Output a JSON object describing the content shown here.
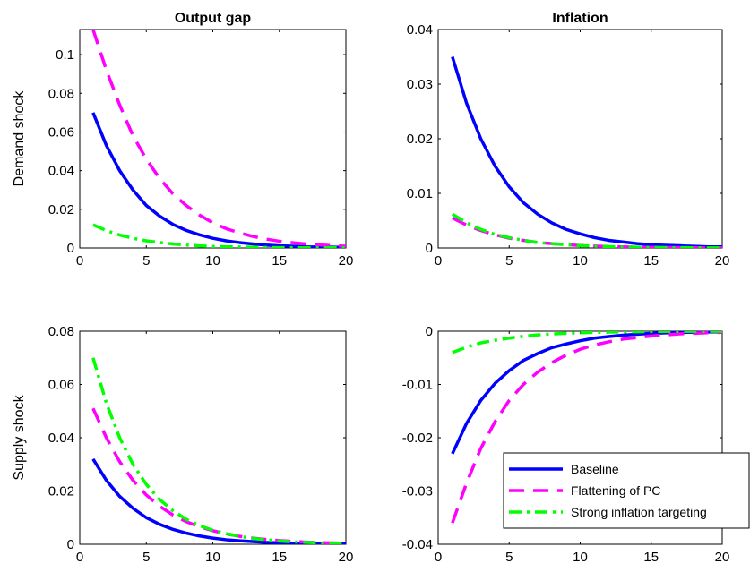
{
  "chart_data": [
    {
      "type": "line",
      "title": "Output gap",
      "ylabel": "Demand shock",
      "xlim": [
        0,
        20
      ],
      "ylim": [
        0,
        0.113
      ],
      "xticks": [
        0,
        5,
        10,
        15,
        20
      ],
      "yticks": [
        0,
        0.02,
        0.04,
        0.06,
        0.08,
        0.1
      ],
      "yticklabels": [
        "0",
        "0.02",
        "0.04",
        "0.06",
        "0.08",
        "0.1"
      ],
      "x": [
        1,
        2,
        3,
        4,
        5,
        6,
        7,
        8,
        9,
        10,
        11,
        12,
        13,
        14,
        15,
        16,
        17,
        18,
        19,
        20
      ],
      "series": [
        {
          "name": "Baseline",
          "values": [
            0.07,
            0.053,
            0.04,
            0.03,
            0.022,
            0.0165,
            0.0122,
            0.0091,
            0.0068,
            0.005,
            0.0037,
            0.0028,
            0.0021,
            0.0015,
            0.0011,
            0.0009,
            0.0006,
            0.0005,
            0.0004,
            0.0003
          ]
        },
        {
          "name": "Flattening of PC",
          "values": [
            0.113,
            0.092,
            0.074,
            0.058,
            0.046,
            0.036,
            0.028,
            0.022,
            0.017,
            0.013,
            0.01,
            0.0078,
            0.006,
            0.0046,
            0.0035,
            0.0027,
            0.0021,
            0.0016,
            0.0012,
            0.0009
          ]
        },
        {
          "name": "Strong inflation targeting",
          "values": [
            0.012,
            0.009,
            0.0067,
            0.005,
            0.0037,
            0.0028,
            0.0021,
            0.0015,
            0.0011,
            0.0008,
            0.0006,
            0.0005,
            0.0004,
            0.0003,
            0.0002,
            0.0002,
            0.0001,
            0.0001,
            0.0001,
            0.0001
          ]
        }
      ]
    },
    {
      "type": "line",
      "title": "Inflation",
      "ylabel": "",
      "xlim": [
        0,
        20
      ],
      "ylim": [
        0,
        0.04
      ],
      "xticks": [
        0,
        5,
        10,
        15,
        20
      ],
      "yticks": [
        0,
        0.01,
        0.02,
        0.03,
        0.04
      ],
      "yticklabels": [
        "0",
        "0.01",
        "0.02",
        "0.03",
        "0.04"
      ],
      "x": [
        1,
        2,
        3,
        4,
        5,
        6,
        7,
        8,
        9,
        10,
        11,
        12,
        13,
        14,
        15,
        16,
        17,
        18,
        19,
        20
      ],
      "series": [
        {
          "name": "Baseline",
          "values": [
            0.035,
            0.0265,
            0.02,
            0.015,
            0.0112,
            0.0083,
            0.0062,
            0.0046,
            0.0034,
            0.0026,
            0.0019,
            0.0014,
            0.0011,
            0.0008,
            0.0006,
            0.0005,
            0.0004,
            0.0003,
            0.0002,
            0.0002
          ]
        },
        {
          "name": "Flattening of PC",
          "values": [
            0.0055,
            0.0042,
            0.0032,
            0.0024,
            0.0018,
            0.0014,
            0.001,
            0.0008,
            0.0006,
            0.00045,
            0.00034,
            0.00026,
            0.0002,
            0.00015,
            0.00011,
            8e-05,
            6e-05,
            5e-05,
            4e-05,
            3e-05
          ]
        },
        {
          "name": "Strong inflation targeting",
          "values": [
            0.0062,
            0.0046,
            0.0034,
            0.0025,
            0.0019,
            0.0014,
            0.001,
            0.0008,
            0.0006,
            0.00044,
            0.00033,
            0.00025,
            0.00018,
            0.00014,
            0.0001,
            8e-05,
            6e-05,
            4e-05,
            3e-05,
            2e-05
          ]
        }
      ]
    },
    {
      "type": "line",
      "title": "",
      "ylabel": "Supply shock",
      "xlim": [
        0,
        20
      ],
      "ylim": [
        0,
        0.08
      ],
      "xticks": [
        0,
        5,
        10,
        15,
        20
      ],
      "yticks": [
        0,
        0.02,
        0.04,
        0.06,
        0.08
      ],
      "yticklabels": [
        "0",
        "0.02",
        "0.04",
        "0.06",
        "0.08"
      ],
      "x": [
        1,
        2,
        3,
        4,
        5,
        6,
        7,
        8,
        9,
        10,
        11,
        12,
        13,
        14,
        15,
        16,
        17,
        18,
        19,
        20
      ],
      "series": [
        {
          "name": "Baseline",
          "values": [
            0.032,
            0.024,
            0.018,
            0.0135,
            0.01,
            0.0075,
            0.0056,
            0.0042,
            0.0031,
            0.0023,
            0.0017,
            0.0013,
            0.001,
            0.0007,
            0.00055,
            0.0004,
            0.0003,
            0.00023,
            0.00017,
            0.00013
          ]
        },
        {
          "name": "Flattening of PC",
          "values": [
            0.051,
            0.04,
            0.031,
            0.024,
            0.0185,
            0.0143,
            0.011,
            0.0085,
            0.0066,
            0.0051,
            0.0039,
            0.003,
            0.0023,
            0.0018,
            0.0014,
            0.0011,
            0.0008,
            0.0006,
            0.0005,
            0.0004
          ]
        },
        {
          "name": "Strong inflation targeting",
          "values": [
            0.07,
            0.053,
            0.04,
            0.03,
            0.0225,
            0.0168,
            0.0126,
            0.0094,
            0.007,
            0.0053,
            0.004,
            0.003,
            0.0022,
            0.0017,
            0.0012,
            0.0009,
            0.0007,
            0.0005,
            0.0004,
            0.0003
          ]
        }
      ]
    },
    {
      "type": "line",
      "title": "",
      "ylabel": "",
      "xlim": [
        0,
        20
      ],
      "ylim": [
        -0.04,
        0
      ],
      "xticks": [
        0,
        5,
        10,
        15,
        20
      ],
      "yticks": [
        -0.04,
        -0.03,
        -0.02,
        -0.01,
        0
      ],
      "yticklabels": [
        "-0.04",
        "-0.03",
        "-0.02",
        "-0.01",
        "0"
      ],
      "x": [
        1,
        2,
        3,
        4,
        5,
        6,
        7,
        8,
        9,
        10,
        11,
        12,
        13,
        14,
        15,
        16,
        17,
        18,
        19,
        20
      ],
      "series": [
        {
          "name": "Baseline",
          "values": [
            -0.023,
            -0.0173,
            -0.013,
            -0.0098,
            -0.0074,
            -0.0055,
            -0.0042,
            -0.0031,
            -0.0024,
            -0.0018,
            -0.0013,
            -0.001,
            -0.00075,
            -0.00056,
            -0.00042,
            -0.00032,
            -0.00024,
            -0.00018,
            -0.00014,
            -0.0001
          ]
        },
        {
          "name": "Flattening of PC",
          "values": [
            -0.036,
            -0.0285,
            -0.022,
            -0.017,
            -0.013,
            -0.01,
            -0.0077,
            -0.0059,
            -0.0045,
            -0.0034,
            -0.0026,
            -0.002,
            -0.0015,
            -0.0012,
            -0.0009,
            -0.0007,
            -0.0005,
            -0.0004,
            -0.0003,
            -0.0002
          ]
        },
        {
          "name": "Strong inflation targeting",
          "values": [
            -0.004,
            -0.003,
            -0.0022,
            -0.0017,
            -0.0013,
            -0.00095,
            -0.0007,
            -0.00053,
            -0.0004,
            -0.0003,
            -0.00022,
            -0.00017,
            -0.00013,
            -0.0001,
            -7e-05,
            -5e-05,
            -4e-05,
            -3e-05,
            -2e-05,
            -2e-05
          ]
        }
      ],
      "legend": {
        "placement": "bottom-right",
        "entries": [
          "Baseline",
          "Flattening of PC",
          "Strong inflation targeting"
        ]
      }
    }
  ],
  "styles": {
    "Baseline": {
      "color": "#0000ff",
      "dash": "solid"
    },
    "Flattening of PC": {
      "color": "#ff00ff",
      "dash": "dashed"
    },
    "Strong inflation targeting": {
      "color": "#00ff00",
      "dash": "dashdot"
    }
  }
}
